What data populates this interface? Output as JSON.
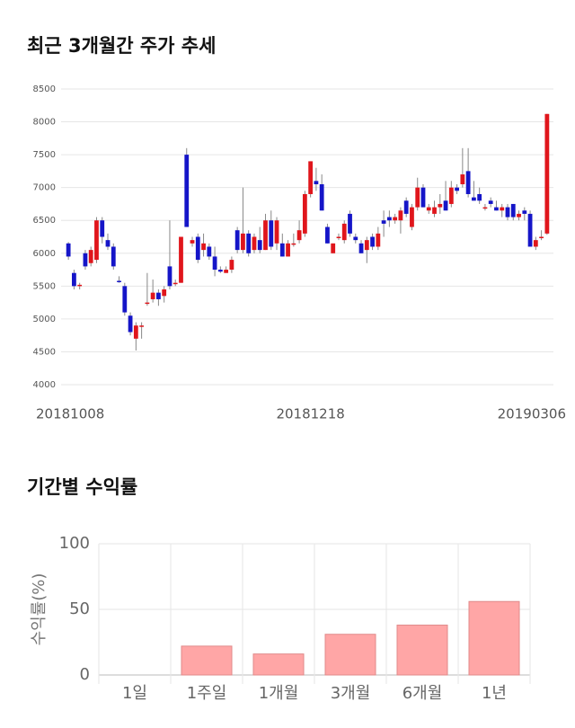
{
  "chart_data": [
    {
      "type": "candlestick",
      "title": "최근 3개월간 주가 추세",
      "categories": [
        "20181008",
        null,
        null,
        null,
        null,
        null,
        null,
        null,
        null,
        null,
        null,
        null,
        null,
        null,
        null,
        null,
        null,
        null,
        null,
        null,
        null,
        null,
        null,
        null,
        null,
        null,
        null,
        null,
        null,
        null,
        null,
        null,
        null,
        null,
        null,
        null,
        null,
        null,
        null,
        null,
        null,
        null,
        null,
        "20181218",
        null,
        null,
        null,
        null,
        null,
        null,
        null,
        null,
        null,
        null,
        null,
        null,
        null,
        null,
        null,
        null,
        null,
        null,
        null,
        null,
        null,
        null,
        null,
        null,
        null,
        null,
        null,
        null,
        null,
        null,
        null,
        null,
        null,
        null,
        null,
        null,
        null,
        null,
        null,
        null,
        null,
        "20190306"
      ],
      "open": [
        6150,
        5700,
        5500,
        6000,
        5850,
        5900,
        6500,
        6200,
        6100,
        5580,
        5500,
        5050,
        4700,
        4900,
        5250,
        5300,
        5400,
        5350,
        5800,
        5550,
        5550,
        7500,
        6150,
        6250,
        6050,
        6100,
        5950,
        5750,
        5700,
        5750,
        6350,
        6050,
        6300,
        6050,
        6200,
        6050,
        6500,
        6150,
        6150,
        5950,
        6150,
        6200,
        6300,
        6900,
        7100,
        7050,
        6400,
        6000,
        6250,
        6200,
        6600,
        6250,
        6150,
        6050,
        6250,
        6100,
        6500,
        6550,
        6500,
        6500,
        6800,
        6400,
        6700,
        7000,
        6650,
        6600,
        6700,
        6800,
        6750,
        7000,
        7050,
        7250,
        6850,
        6900,
        6700,
        6800,
        6700,
        6650,
        6700,
        6750,
        6550,
        6650,
        6600,
        6100,
        6250,
        6300
      ],
      "high": [
        6170,
        5750,
        5550,
        6050,
        6100,
        6550,
        6550,
        6300,
        6150,
        5650,
        5550,
        5100,
        4950,
        4950,
        5700,
        5600,
        5450,
        5500,
        6500,
        5600,
        6250,
        7600,
        6250,
        6300,
        6300,
        6150,
        6100,
        5800,
        5800,
        5950,
        6400,
        7000,
        6350,
        6300,
        6400,
        6600,
        6650,
        6550,
        6300,
        6200,
        6300,
        6500,
        6950,
        7400,
        7300,
        7200,
        6450,
        6150,
        6300,
        6500,
        6650,
        6300,
        6200,
        6250,
        6300,
        6400,
        6650,
        6650,
        6600,
        6700,
        6850,
        6750,
        7150,
        7050,
        6750,
        6800,
        6900,
        7100,
        7100,
        7050,
        7600,
        7600,
        7100,
        7000,
        6750,
        6850,
        6800,
        6750,
        6750,
        6750,
        6650,
        6700,
        6650,
        6250,
        6350,
        8120
      ],
      "low": [
        5900,
        5450,
        5450,
        5750,
        5800,
        5850,
        6150,
        6050,
        5750,
        5550,
        5050,
        4750,
        4520,
        4700,
        5200,
        5250,
        5200,
        5250,
        5450,
        5500,
        5550,
        6400,
        6100,
        5850,
        5950,
        5900,
        5650,
        5700,
        5700,
        5700,
        6000,
        6000,
        5950,
        6000,
        6000,
        6050,
        6050,
        6050,
        5950,
        5950,
        6100,
        6150,
        6250,
        6850,
        6950,
        6650,
        6150,
        6000,
        6200,
        6150,
        6250,
        6150,
        6000,
        5850,
        6050,
        6050,
        6250,
        6400,
        6450,
        6300,
        6550,
        6350,
        6650,
        6700,
        6600,
        6550,
        6600,
        6650,
        6700,
        6900,
        7000,
        6850,
        6800,
        6750,
        6650,
        6700,
        6650,
        6550,
        6500,
        6500,
        6500,
        6500,
        6100,
        6050,
        6200,
        6280
      ],
      "close": [
        5950,
        5500,
        5520,
        5800,
        6050,
        6500,
        6250,
        6100,
        5800,
        5570,
        5100,
        4800,
        4900,
        4900,
        5250,
        5400,
        5300,
        5450,
        5500,
        5550,
        6250,
        6400,
        6200,
        5900,
        6150,
        5950,
        5750,
        5720,
        5750,
        5900,
        6050,
        6300,
        6000,
        6250,
        6050,
        6500,
        6100,
        6500,
        5950,
        6150,
        6150,
        6350,
        6900,
        7400,
        7050,
        6650,
        6150,
        6150,
        6250,
        6450,
        6300,
        6200,
        6000,
        6200,
        6100,
        6300,
        6450,
        6500,
        6550,
        6650,
        6600,
        6700,
        7000,
        6700,
        6700,
        6700,
        6750,
        6650,
        7000,
        6950,
        7200,
        6900,
        6800,
        6800,
        6700,
        6750,
        6650,
        6700,
        6550,
        6550,
        6600,
        6600,
        6100,
        6200,
        6250,
        8120
      ],
      "up_color": "#e0161c",
      "down_color": "#1515c8",
      "wick_color": "#888888",
      "ylim": [
        4000,
        8500
      ],
      "yticks": [
        4000,
        4500,
        5000,
        5500,
        6000,
        6500,
        7000,
        7500,
        8000,
        8500
      ],
      "grid": true
    },
    {
      "type": "bar",
      "title": "기간별 수익률",
      "ylabel": "수익률(%)",
      "categories": [
        "1일",
        "1주일",
        "1개월",
        "3개월",
        "6개월",
        "1년"
      ],
      "values": [
        0,
        22,
        16,
        31,
        38,
        56
      ],
      "color": "#ffa6a6",
      "edge_color": "#e08a8a",
      "ylim": [
        0,
        100
      ],
      "yticks": [
        0,
        50,
        100
      ],
      "grid": true
    }
  ]
}
